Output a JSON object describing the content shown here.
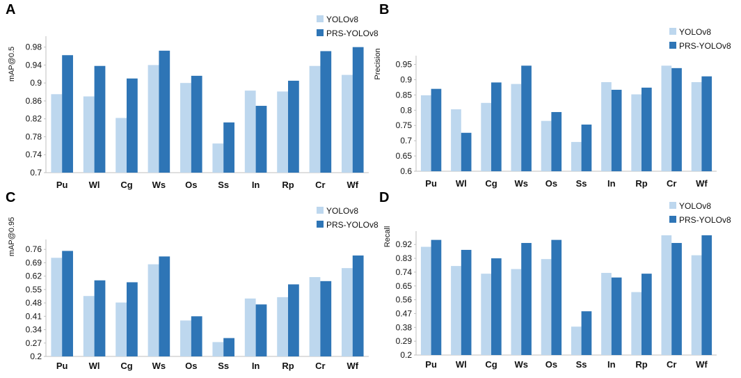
{
  "colors": {
    "yolov8": "#bdd7ee",
    "prs": "#2e75b6",
    "axis": "#bfbfbf"
  },
  "chart_data": [
    {
      "panel": "A",
      "type": "bar",
      "ylabel": "mAP@0.5",
      "categories": [
        "Pu",
        "Wl",
        "Cg",
        "Ws",
        "Os",
        "Ss",
        "In",
        "Rp",
        "Cr",
        "Wf"
      ],
      "ylim": [
        0.7,
        0.995
      ],
      "yticks": [
        "0.7",
        "0.74",
        "0.78",
        "0.82",
        "0.86",
        "0.9",
        "0.94",
        "0.98"
      ],
      "series": [
        {
          "name": "YOLOv8",
          "values": [
            0.875,
            0.87,
            0.822,
            0.94,
            0.9,
            0.765,
            0.883,
            0.881,
            0.938,
            0.918
          ]
        },
        {
          "name": "PRS-YOLOv8",
          "values": [
            0.962,
            0.938,
            0.91,
            0.972,
            0.916,
            0.812,
            0.849,
            0.905,
            0.971,
            0.98
          ]
        }
      ]
    },
    {
      "panel": "B",
      "type": "bar",
      "ylabel": "Precision",
      "categories": [
        "Pu",
        "Wl",
        "Cg",
        "Ws",
        "Os",
        "Ss",
        "In",
        "Rp",
        "Cr",
        "Wf"
      ],
      "ylim": [
        0.6,
        0.965
      ],
      "yticks": [
        "0.6",
        "0.65",
        "0.7",
        "0.75",
        "0.8",
        "0.85",
        "0.9",
        "0.95"
      ],
      "series": [
        {
          "name": "YOLOv8",
          "values": [
            0.849,
            0.803,
            0.824,
            0.886,
            0.765,
            0.696,
            0.892,
            0.852,
            0.946,
            0.892
          ]
        },
        {
          "name": "PRS-YOLOv8",
          "values": [
            0.87,
            0.726,
            0.891,
            0.946,
            0.794,
            0.753,
            0.867,
            0.874,
            0.938,
            0.911
          ]
        }
      ]
    },
    {
      "panel": "C",
      "type": "bar",
      "ylabel": "mAP@0.95",
      "categories": [
        "Pu",
        "Wl",
        "Cg",
        "Ws",
        "Os",
        "Ss",
        "In",
        "Rp",
        "Cr",
        "Wf"
      ],
      "ylim": [
        0.2,
        0.79
      ],
      "yticks": [
        "0.2",
        "0.27",
        "0.34",
        "0.41",
        "0.48",
        "0.55",
        "0.62",
        "0.69",
        "0.76"
      ],
      "series": [
        {
          "name": "YOLOv8",
          "values": [
            0.716,
            0.516,
            0.482,
            0.682,
            0.388,
            0.275,
            0.503,
            0.51,
            0.615,
            0.662
          ]
        },
        {
          "name": "PRS-YOLOv8",
          "values": [
            0.752,
            0.598,
            0.588,
            0.723,
            0.41,
            0.296,
            0.472,
            0.577,
            0.594,
            0.728
          ]
        }
      ]
    },
    {
      "panel": "D",
      "type": "bar",
      "ylabel": "Recall",
      "categories": [
        "Pu",
        "Wl",
        "Cg",
        "Ws",
        "Os",
        "Ss",
        "In",
        "Rp",
        "Cr",
        "Wf"
      ],
      "ylim": [
        0.2,
        0.98
      ],
      "yticks": [
        "0.2",
        "0.29",
        "0.38",
        "0.47",
        "0.56",
        "0.65",
        "0.74",
        "0.83",
        "0.92"
      ],
      "series": [
        {
          "name": "YOLOv8",
          "values": [
            0.905,
            0.78,
            0.73,
            0.76,
            0.825,
            0.385,
            0.735,
            0.61,
            0.98,
            0.85
          ]
        },
        {
          "name": "PRS-YOLOv8",
          "values": [
            0.95,
            0.885,
            0.83,
            0.93,
            0.95,
            0.485,
            0.705,
            0.73,
            0.93,
            0.98
          ]
        }
      ]
    }
  ]
}
